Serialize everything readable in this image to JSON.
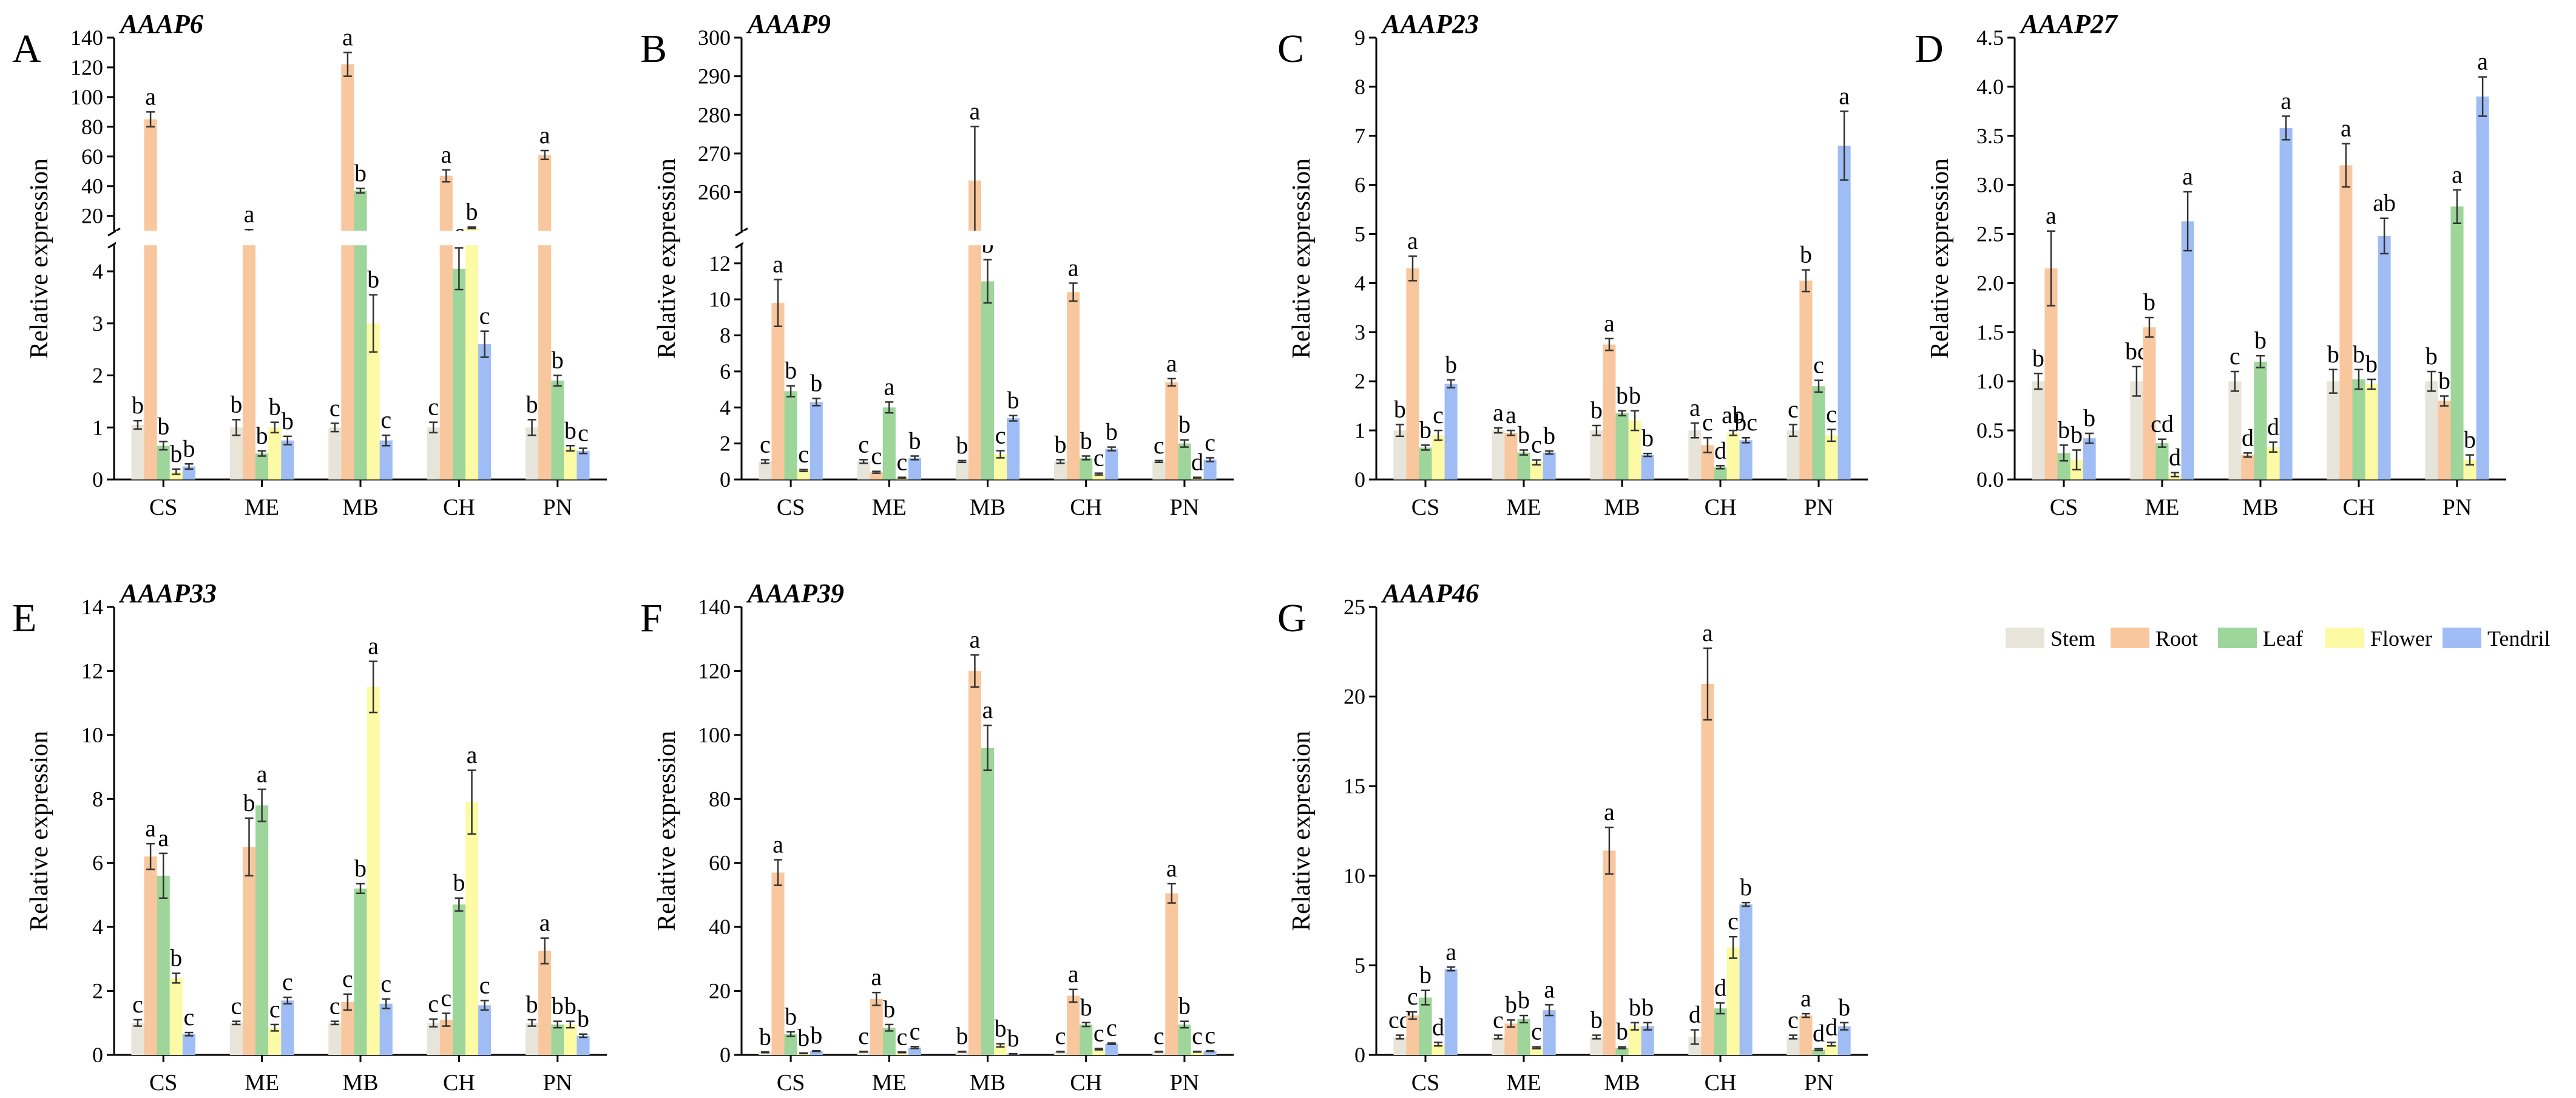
{
  "chart_data": [
    {
      "type": "bar",
      "panel_letter": "A",
      "title": "AAAP6",
      "ylabel": "Relative expression",
      "categories": [
        "CS",
        "ME",
        "MB",
        "CH",
        "PN"
      ],
      "axis_break": {
        "lower_range": [
          0,
          4.5
        ],
        "upper_range": [
          10,
          140
        ]
      },
      "yticks_lower": [
        "0",
        "1",
        "2",
        "3",
        "4"
      ],
      "yticks_upper": [
        "20",
        "40",
        "60",
        "80",
        "100",
        "120",
        "140"
      ],
      "series": [
        {
          "name": "Stem",
          "values": [
            1.05,
            1.0,
            1.0,
            1.0,
            1.0
          ],
          "errors": [
            0.08,
            0.15,
            0.08,
            0.1,
            0.15
          ],
          "labels": [
            "b",
            "b",
            "c",
            "c",
            "b"
          ]
        },
        {
          "name": "Root",
          "values": [
            85,
            10,
            122,
            47,
            61
          ],
          "errors": [
            5,
            0.8,
            8,
            4,
            3
          ],
          "labels": [
            "a",
            "a",
            "a",
            "a",
            "a"
          ]
        },
        {
          "name": "Leaf",
          "values": [
            0.65,
            0.5,
            37,
            4.05,
            1.9
          ],
          "errors": [
            0.08,
            0.05,
            1.5,
            0.4,
            0.1
          ],
          "labels": [
            "b",
            "b",
            "b",
            "c",
            "b"
          ]
        },
        {
          "name": "Flower",
          "values": [
            0.15,
            1.0,
            3.0,
            12.0,
            0.6
          ],
          "errors": [
            0.05,
            0.1,
            0.55,
            0.5,
            0.05
          ],
          "labels": [
            "b",
            "b",
            "b",
            "b",
            "b"
          ]
        },
        {
          "name": "Tendril",
          "values": [
            0.25,
            0.75,
            0.75,
            2.6,
            0.55
          ],
          "errors": [
            0.05,
            0.08,
            0.1,
            0.25,
            0.05
          ],
          "labels": [
            "b",
            "b",
            "c",
            "c",
            "c"
          ]
        }
      ]
    },
    {
      "type": "bar",
      "panel_letter": "B",
      "title": "AAAP9",
      "ylabel": "Relative expression",
      "categories": [
        "CS",
        "ME",
        "MB",
        "CH",
        "PN"
      ],
      "axis_break": {
        "lower_range": [
          0,
          13
        ],
        "upper_range": [
          250,
          300
        ]
      },
      "yticks_lower": [
        "0",
        "2",
        "4",
        "6",
        "8",
        "10",
        "12"
      ],
      "yticks_upper": [
        "260",
        "270",
        "280",
        "290",
        "300"
      ],
      "series": [
        {
          "name": "Stem",
          "values": [
            1.0,
            1.0,
            1.0,
            1.0,
            1.0
          ],
          "errors": [
            0.1,
            0.1,
            0.05,
            0.1,
            0.05
          ],
          "labels": [
            "c",
            "c",
            "b",
            "b",
            "c"
          ]
        },
        {
          "name": "Root",
          "values": [
            9.8,
            0.4,
            263,
            10.4,
            5.4
          ],
          "errors": [
            1.3,
            0.05,
            14,
            0.5,
            0.2
          ],
          "labels": [
            "a",
            "c",
            "a",
            "a",
            "a"
          ]
        },
        {
          "name": "Leaf",
          "values": [
            4.9,
            4.0,
            11.0,
            1.2,
            2.0
          ],
          "errors": [
            0.3,
            0.3,
            1.2,
            0.1,
            0.2
          ],
          "labels": [
            "b",
            "a",
            "b",
            "b",
            "b"
          ]
        },
        {
          "name": "Flower",
          "values": [
            0.5,
            0.1,
            1.4,
            0.3,
            0.1
          ],
          "errors": [
            0.05,
            0.02,
            0.2,
            0.05,
            0.02
          ],
          "labels": [
            "c",
            "c",
            "c",
            "c",
            "d"
          ]
        },
        {
          "name": "Tendril",
          "values": [
            4.3,
            1.2,
            3.4,
            1.7,
            1.1
          ],
          "errors": [
            0.2,
            0.1,
            0.15,
            0.1,
            0.1
          ],
          "labels": [
            "b",
            "b",
            "b",
            "b",
            "c"
          ]
        }
      ]
    },
    {
      "type": "bar",
      "panel_letter": "C",
      "title": "AAAP23",
      "ylabel": "Relative expression",
      "categories": [
        "CS",
        "ME",
        "MB",
        "CH",
        "PN"
      ],
      "ylim": [
        0,
        9
      ],
      "yticks": [
        "0",
        "1",
        "2",
        "3",
        "4",
        "5",
        "6",
        "7",
        "8",
        "9"
      ],
      "series": [
        {
          "name": "Stem",
          "values": [
            1.0,
            1.0,
            1.0,
            1.0,
            1.0
          ],
          "errors": [
            0.12,
            0.05,
            0.1,
            0.15,
            0.12
          ],
          "labels": [
            "b",
            "a",
            "b",
            "a",
            "c"
          ]
        },
        {
          "name": "Root",
          "values": [
            4.3,
            0.95,
            2.75,
            0.7,
            4.05
          ],
          "errors": [
            0.25,
            0.05,
            0.12,
            0.15,
            0.22
          ],
          "labels": [
            "a",
            "a",
            "a",
            "c",
            "b"
          ]
        },
        {
          "name": "Leaf",
          "values": [
            0.65,
            0.55,
            1.35,
            0.25,
            1.9
          ],
          "errors": [
            0.05,
            0.05,
            0.05,
            0.03,
            0.12
          ],
          "labels": [
            "b",
            "b",
            "b",
            "d",
            "c"
          ]
        },
        {
          "name": "Flower",
          "values": [
            0.9,
            0.35,
            1.2,
            0.95,
            0.9
          ],
          "errors": [
            0.1,
            0.05,
            0.2,
            0.05,
            0.12
          ],
          "labels": [
            "c",
            "c",
            "b",
            "ab",
            "c"
          ]
        },
        {
          "name": "Tendril",
          "values": [
            1.95,
            0.55,
            0.5,
            0.8,
            6.8
          ],
          "errors": [
            0.08,
            0.03,
            0.03,
            0.05,
            0.7
          ],
          "labels": [
            "b",
            "b",
            "b",
            "bc",
            "a"
          ]
        }
      ]
    },
    {
      "type": "bar",
      "panel_letter": "D",
      "title": "AAAP27",
      "ylabel": "Relative expression",
      "categories": [
        "CS",
        "ME",
        "MB",
        "CH",
        "PN"
      ],
      "ylim": [
        0,
        4.5
      ],
      "yticks": [
        "0.0",
        "0.5",
        "1.0",
        "1.5",
        "2.0",
        "2.5",
        "3.0",
        "3.5",
        "4.0",
        "4.5"
      ],
      "series": [
        {
          "name": "Stem",
          "values": [
            1.0,
            1.0,
            1.0,
            1.0,
            1.0
          ],
          "errors": [
            0.08,
            0.15,
            0.1,
            0.12,
            0.1
          ],
          "labels": [
            "b",
            "bc",
            "c",
            "b",
            "b"
          ]
        },
        {
          "name": "Root",
          "values": [
            2.15,
            1.55,
            0.25,
            3.2,
            0.8
          ],
          "errors": [
            0.38,
            0.1,
            0.02,
            0.22,
            0.05
          ],
          "labels": [
            "a",
            "b",
            "d",
            "a",
            "b"
          ]
        },
        {
          "name": "Leaf",
          "values": [
            0.27,
            0.37,
            1.2,
            1.02,
            2.78
          ],
          "errors": [
            0.08,
            0.04,
            0.06,
            0.1,
            0.17
          ],
          "labels": [
            "b",
            "cd",
            "b",
            "b",
            "a"
          ]
        },
        {
          "name": "Flower",
          "values": [
            0.2,
            0.05,
            0.33,
            0.97,
            0.2
          ],
          "errors": [
            0.1,
            0.02,
            0.05,
            0.05,
            0.05
          ],
          "labels": [
            "b",
            "d",
            "d",
            "b",
            "b"
          ]
        },
        {
          "name": "Tendril",
          "values": [
            0.42,
            2.63,
            3.58,
            2.48,
            3.9
          ],
          "errors": [
            0.05,
            0.3,
            0.12,
            0.18,
            0.2
          ],
          "labels": [
            "b",
            "a",
            "a",
            "ab",
            "a"
          ]
        }
      ]
    },
    {
      "type": "bar",
      "panel_letter": "E",
      "title": "AAAP33",
      "ylabel": "Relative expression",
      "categories": [
        "CS",
        "ME",
        "MB",
        "CH",
        "PN"
      ],
      "ylim": [
        0,
        14
      ],
      "yticks": [
        "0",
        "2",
        "4",
        "6",
        "8",
        "10",
        "12",
        "14"
      ],
      "series": [
        {
          "name": "Stem",
          "values": [
            1.0,
            1.0,
            1.0,
            1.0,
            1.0
          ],
          "errors": [
            0.1,
            0.05,
            0.05,
            0.12,
            0.1
          ],
          "labels": [
            "c",
            "c",
            "c",
            "c",
            "b"
          ]
        },
        {
          "name": "Root",
          "values": [
            6.2,
            6.5,
            1.65,
            1.1,
            3.25
          ],
          "errors": [
            0.4,
            0.9,
            0.25,
            0.2,
            0.4
          ],
          "labels": [
            "a",
            "b",
            "c",
            "c",
            "a"
          ]
        },
        {
          "name": "Leaf",
          "values": [
            5.6,
            7.8,
            5.2,
            4.7,
            0.95
          ],
          "errors": [
            0.7,
            0.5,
            0.15,
            0.2,
            0.1
          ],
          "labels": [
            "a",
            "a",
            "b",
            "b",
            "b"
          ]
        },
        {
          "name": "Flower",
          "values": [
            2.4,
            0.85,
            11.5,
            7.9,
            0.95
          ],
          "errors": [
            0.15,
            0.1,
            0.8,
            1.0,
            0.1
          ],
          "labels": [
            "b",
            "c",
            "a",
            "a",
            "b"
          ]
        },
        {
          "name": "Tendril",
          "values": [
            0.65,
            1.7,
            1.6,
            1.55,
            0.6
          ],
          "errors": [
            0.05,
            0.1,
            0.15,
            0.15,
            0.05
          ],
          "labels": [
            "c",
            "c",
            "c",
            "c",
            "b"
          ]
        }
      ]
    },
    {
      "type": "bar",
      "panel_letter": "F",
      "title": "AAAP39",
      "ylabel": "Relative expression",
      "categories": [
        "CS",
        "ME",
        "MB",
        "CH",
        "PN"
      ],
      "ylim": [
        0,
        140
      ],
      "yticks": [
        "0",
        "20",
        "40",
        "60",
        "80",
        "100",
        "120",
        "140"
      ],
      "series": [
        {
          "name": "Stem",
          "values": [
            0.8,
            1.0,
            1.0,
            1.0,
            1.0
          ],
          "errors": [
            0.1,
            0.1,
            0.1,
            0.1,
            0.1
          ],
          "labels": [
            "b",
            "c",
            "b",
            "c",
            "c"
          ]
        },
        {
          "name": "Root",
          "values": [
            57,
            17.5,
            120,
            18.5,
            50.5
          ],
          "errors": [
            4,
            2,
            5,
            2,
            3
          ],
          "labels": [
            "a",
            "a",
            "a",
            "a",
            "a"
          ]
        },
        {
          "name": "Leaf",
          "values": [
            6.5,
            8.5,
            96,
            9.5,
            9.5
          ],
          "errors": [
            0.7,
            1,
            7,
            0.6,
            1
          ],
          "labels": [
            "b",
            "b",
            "a",
            "b",
            "b"
          ]
        },
        {
          "name": "Flower",
          "values": [
            0.5,
            0.8,
            3.0,
            1.8,
            1.0
          ],
          "errors": [
            0.1,
            0.1,
            0.5,
            0.2,
            0.1
          ],
          "labels": [
            "b",
            "c",
            "b",
            "c",
            "c"
          ]
        },
        {
          "name": "Tendril",
          "values": [
            1.2,
            2.3,
            0.3,
            3.5,
            1.2
          ],
          "errors": [
            0.1,
            0.3,
            0.05,
            0.2,
            0.1
          ],
          "labels": [
            "b",
            "c",
            "b",
            "c",
            "c"
          ]
        }
      ]
    },
    {
      "type": "bar",
      "panel_letter": "G",
      "title": "AAAP46",
      "ylabel": "Relative expression",
      "categories": [
        "CS",
        "ME",
        "MB",
        "CH",
        "PN"
      ],
      "ylim": [
        0,
        25
      ],
      "yticks": [
        "0",
        "5",
        "10",
        "15",
        "20",
        "25"
      ],
      "series": [
        {
          "name": "Stem",
          "values": [
            1.0,
            1.0,
            1.0,
            1.0,
            1.0
          ],
          "errors": [
            0.1,
            0.1,
            0.1,
            0.4,
            0.1
          ],
          "labels": [
            "cd",
            "c",
            "b",
            "d",
            "c"
          ]
        },
        {
          "name": "Root",
          "values": [
            2.2,
            1.75,
            11.4,
            20.7,
            2.2
          ],
          "errors": [
            0.2,
            0.2,
            1.3,
            2.0,
            0.1
          ],
          "labels": [
            "c",
            "b",
            "a",
            "a",
            "a"
          ]
        },
        {
          "name": "Leaf",
          "values": [
            3.2,
            2.0,
            0.4,
            2.6,
            0.3
          ],
          "errors": [
            0.4,
            0.2,
            0.05,
            0.3,
            0.05
          ],
          "labels": [
            "b",
            "b",
            "b",
            "d",
            "d"
          ]
        },
        {
          "name": "Flower",
          "values": [
            0.6,
            0.4,
            1.6,
            6.0,
            0.6
          ],
          "errors": [
            0.1,
            0.05,
            0.2,
            0.6,
            0.1
          ],
          "labels": [
            "d",
            "c",
            "b",
            "c",
            "d"
          ]
        },
        {
          "name": "Tendril",
          "values": [
            4.8,
            2.5,
            1.6,
            8.4,
            1.6
          ],
          "errors": [
            0.1,
            0.3,
            0.2,
            0.1,
            0.2
          ],
          "labels": [
            "a",
            "a",
            "b",
            "b",
            "b"
          ]
        }
      ]
    }
  ],
  "legend": {
    "items": [
      "Stem",
      "Root",
      "Leaf",
      "Flower",
      "Tendril"
    ]
  },
  "colors": {
    "Stem": "#e7e4da",
    "Root": "#f9c79d",
    "Leaf": "#9dd59a",
    "Flower": "#fcfaa4",
    "Tendril": "#9fbdf4"
  }
}
